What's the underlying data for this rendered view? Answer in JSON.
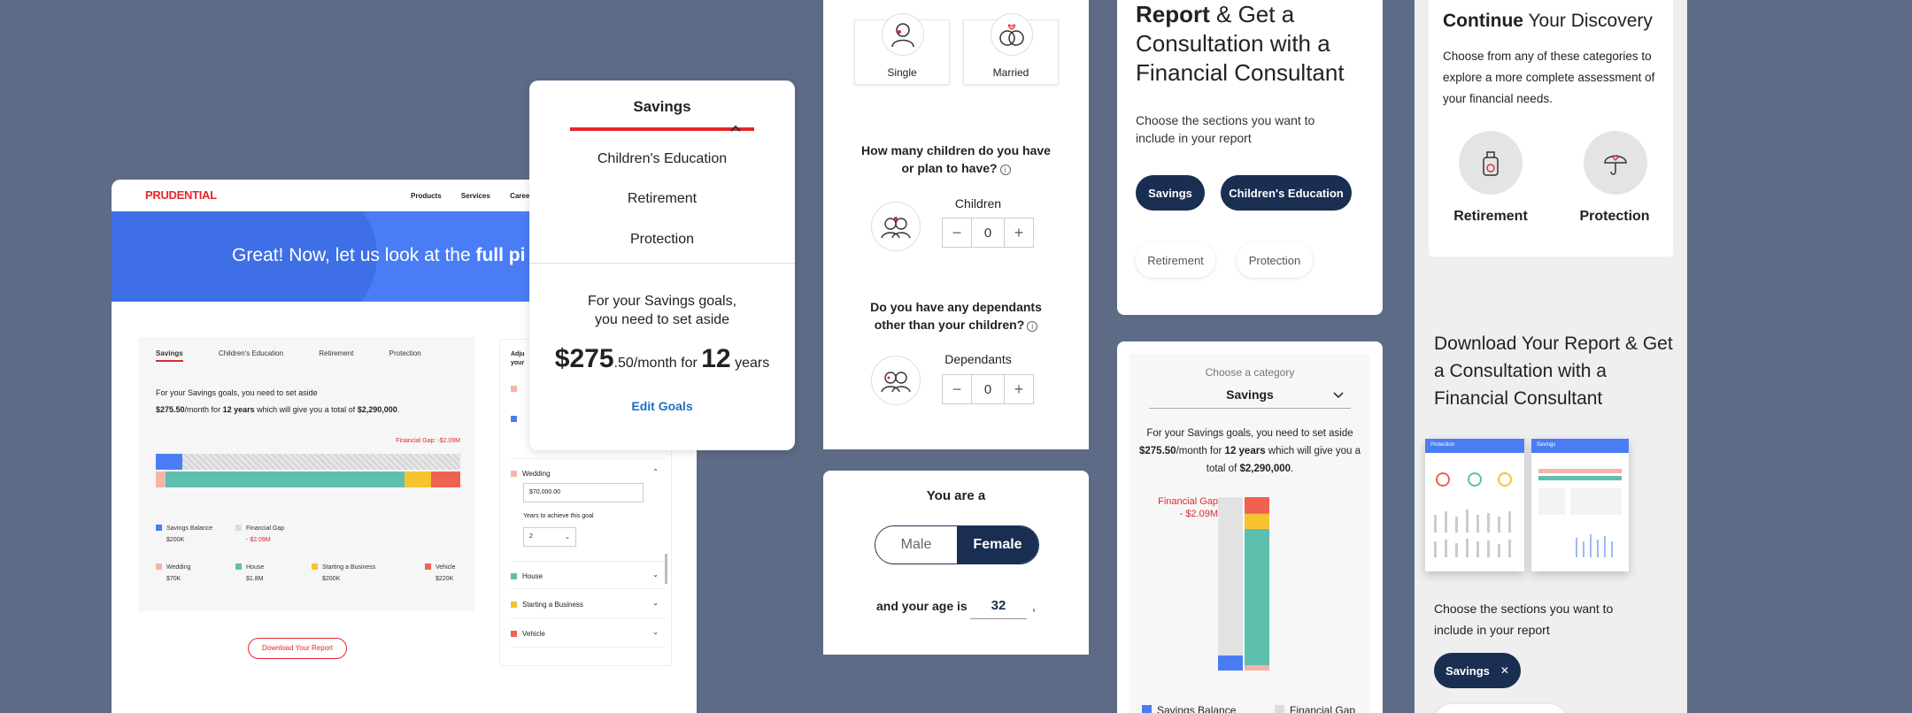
{
  "desktop": {
    "logo": "PRUDENTIAL",
    "nav": [
      "Products",
      "Services",
      "Careers"
    ],
    "hero_text_pre": "Great! Now, let us look at the ",
    "hero_text_bold": "full pi",
    "tabs": [
      "Savings",
      "Children's Education",
      "Retirement",
      "Protection"
    ],
    "summary_line1": "For your Savings goals, you need to set aside",
    "summary_amount": "$275.50",
    "summary_mid": "/month for ",
    "summary_years": "12 years",
    "summary_after": " which will give you a total of ",
    "summary_total": "$2,290,000",
    "summary_end": ".",
    "gap_tag": "Financial Gap: -$2.09M",
    "legend_top": [
      {
        "label": "Savings Balance",
        "value": "$200K",
        "color": "#4a7df5"
      },
      {
        "label": "Financial Gap",
        "value": "- $2.09M",
        "color": "#dddddd"
      }
    ],
    "legend_bottom": [
      {
        "label": "Wedding",
        "value": "$70K",
        "color": "#f5b5a6"
      },
      {
        "label": "House",
        "value": "$1.8M",
        "color": "#5dbfae"
      },
      {
        "label": "Starting a Business",
        "value": "$200K",
        "color": "#f7c32e"
      },
      {
        "label": "Vehicle",
        "value": "$220K",
        "color": "#f06152"
      }
    ],
    "side_title": "Adju your",
    "side_rows": {
      "wedding": "Wedding",
      "wedding_value": "$70,000.00",
      "years_label": "Years to achieve this goal",
      "years_value": "2",
      "house": "House",
      "business": "Starting a Business",
      "vehicle": "Vehicle"
    },
    "download_button": "Download Your Report"
  },
  "dropdown": {
    "selected": "Savings",
    "options": [
      "Children's Education",
      "Retirement",
      "Protection"
    ],
    "text1": "For your Savings goals,",
    "text2": "you need to set aside",
    "amount_big": "$275",
    "amount_small": ".50/month for ",
    "years_big": "12",
    "years_small": " years",
    "edit_link": "Edit Goals"
  },
  "quiz": {
    "single": "Single",
    "married": "Married",
    "q_children": "How many children do you have or plan to have?",
    "children_label": "Children",
    "children_value": "0",
    "q_dependants": "Do you have any dependants other than your children?",
    "dependants_label": "Dependants",
    "dependants_value": "0"
  },
  "gender": {
    "prompt": "You are a",
    "male": "Male",
    "female": "Female",
    "age_prompt": "and your age is",
    "age_value": "32",
    "trailing": ","
  },
  "report": {
    "title_bold": "Report",
    "title_rest": " & Get a Consultation with a Financial Consultant",
    "subtitle": "Choose the sections you want to include in your report",
    "selected": [
      "Savings",
      "Children's Education"
    ],
    "unselected": [
      "Retirement",
      "Protection"
    ]
  },
  "category": {
    "label": "Choose a category",
    "selected": "Savings",
    "text1": "For your Savings goals, you need to set aside",
    "amount": "$275.50",
    "mid": "/month for ",
    "years": "12 years",
    "after": " which will give you a total of ",
    "total": "$2,290,000",
    "end": ".",
    "gap_label_1": "Financial Gap",
    "gap_label_2": "- $2.09M",
    "legend": [
      "Savings Balance",
      "Financial Gap"
    ]
  },
  "continue": {
    "title_bold": "Continue",
    "title_rest": " Your Discovery",
    "text": "Choose from any of these categories to explore a more complete assessment of your financial needs.",
    "categories": [
      "Retirement",
      "Protection"
    ],
    "download_title": "Download Your Report & Get a Consultation with a Financial Consultant",
    "thumb1": "Protection",
    "thumb2": "Savings",
    "choose_text": "Choose the sections you want to include in your report",
    "chip": "Savings",
    "chip_close": "✕"
  },
  "colors": {
    "navy": "#1a2e52",
    "red": "#e4262c",
    "blue": "#4a7df5",
    "teal": "#5dbfae",
    "yellow": "#f7c32e",
    "coral": "#f06152",
    "peach": "#f5b5a6"
  },
  "chart_data": [
    {
      "type": "bar",
      "title": "",
      "categories": [
        "Savings Balance",
        "Financial Gap",
        "Wedding",
        "House",
        "Starting a Business",
        "Vehicle"
      ],
      "values": [
        0.2,
        2.09,
        0.07,
        1.8,
        0.2,
        0.22
      ],
      "unit": "$M",
      "stacked": true
    }
  ]
}
